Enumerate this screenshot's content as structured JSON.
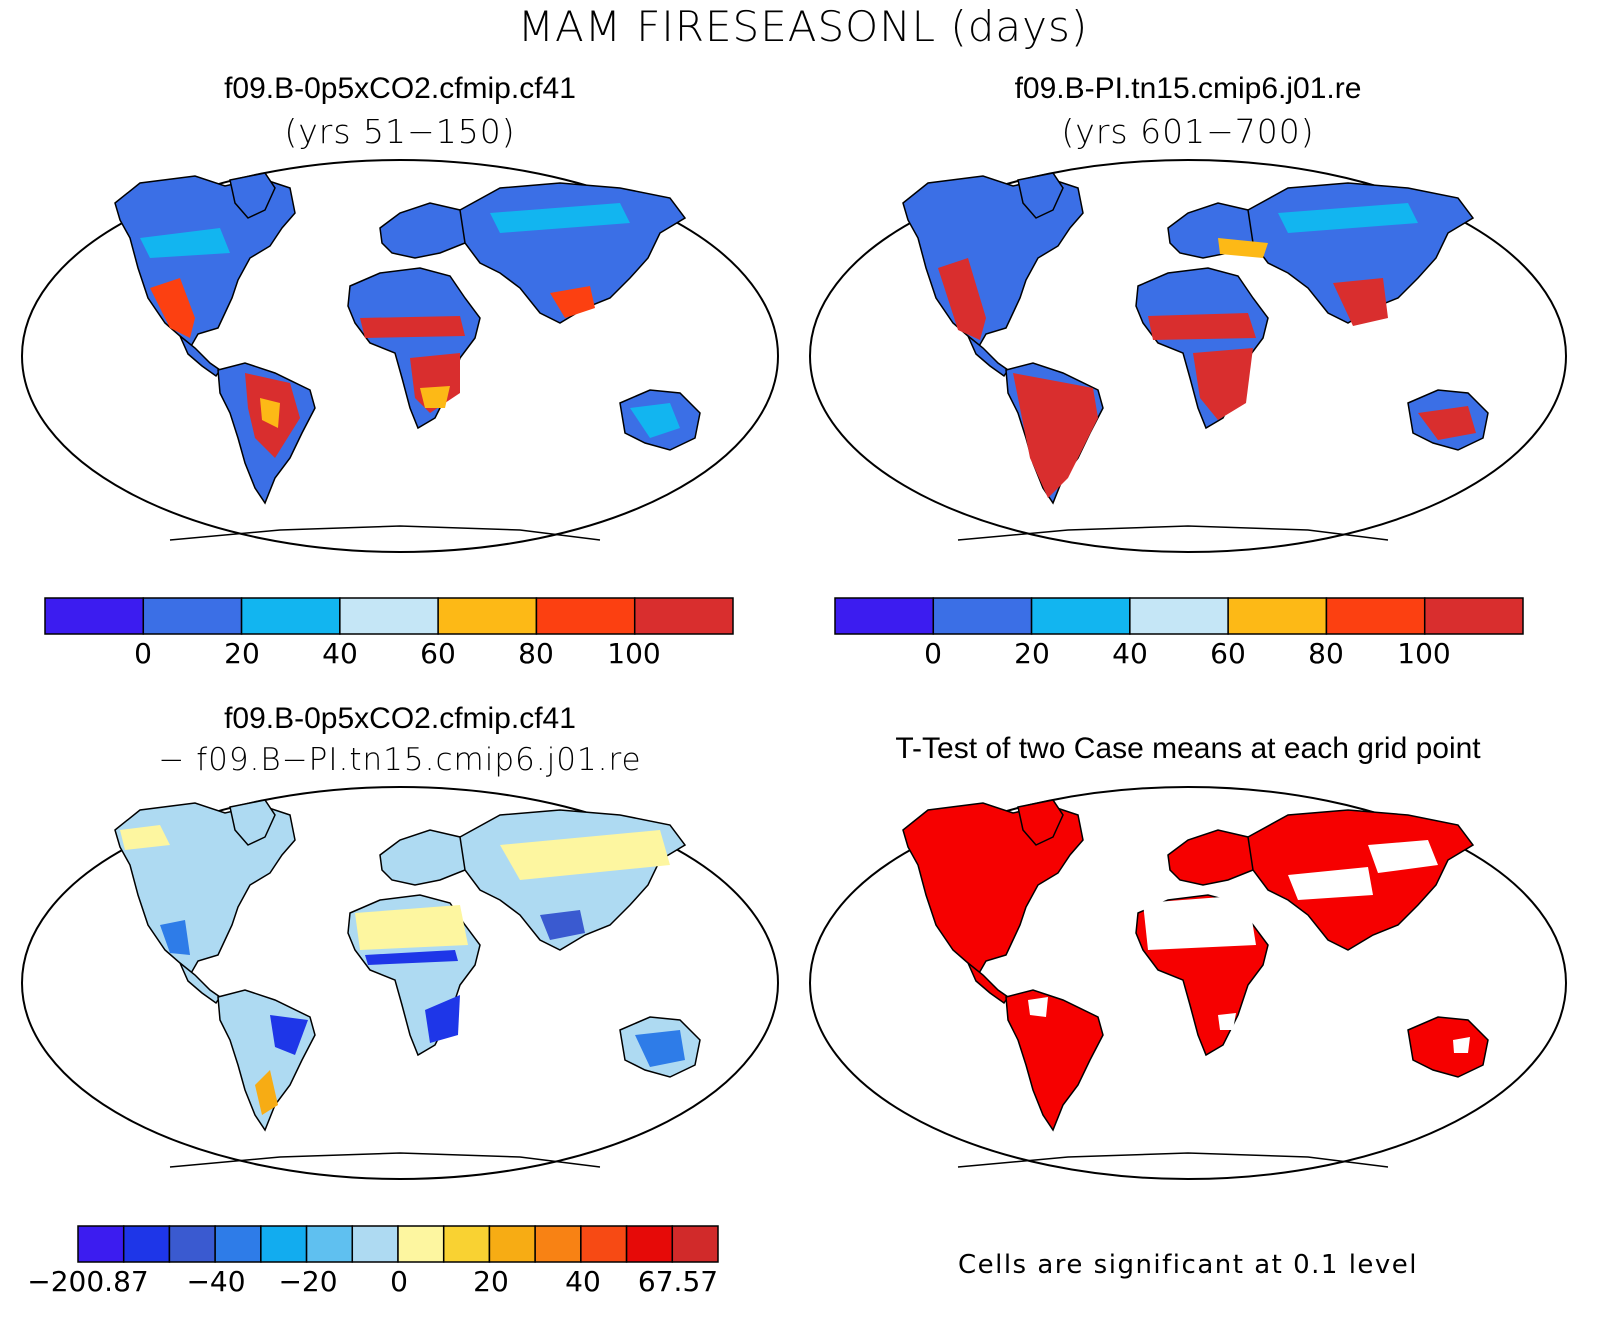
{
  "title": "MAM FIRESEASONL (days)",
  "colors": {
    "abs_scale": [
      "#3c1cf0",
      "#3b6fe6",
      "#12b5f0",
      "#c5e6f6",
      "#fdb916",
      "#fc4011",
      "#d92e2e"
    ],
    "diff_scale": [
      "#3c1cf0",
      "#1e36e8",
      "#3a5ad0",
      "#2e7ce8",
      "#12acef",
      "#5fc0f0",
      "#aedaf2",
      "#fdf6a0",
      "#f9d232",
      "#f7ac14",
      "#f88214",
      "#f74a14",
      "#e60a08",
      "#d12a2a"
    ],
    "significant": "#f60000"
  },
  "panels": {
    "top_left": {
      "title": "f09.B-0p5xCO2.cfmip.cf41",
      "subtitle": "(yrs 51−150)",
      "colorbar_ticks": [
        "0",
        "20",
        "40",
        "60",
        "80",
        "100"
      ]
    },
    "top_right": {
      "title": "f09.B-PI.tn15.cmip6.j01.re",
      "subtitle": "(yrs 601−700)",
      "colorbar_ticks": [
        "0",
        "20",
        "40",
        "60",
        "80",
        "100"
      ]
    },
    "bottom_left": {
      "title": "f09.B-0p5xCO2.cfmip.cf41",
      "subtitle": "− f09.B−PI.tn15.cmip6.j01.re",
      "colorbar_ticks": [
        "−200.87",
        "−40",
        "−20",
        "0",
        "20",
        "40",
        "67.57"
      ]
    },
    "bottom_right": {
      "title": "T-Test of two Case means at each grid point",
      "footnote": "Cells are significant at 0.1 level"
    }
  }
}
